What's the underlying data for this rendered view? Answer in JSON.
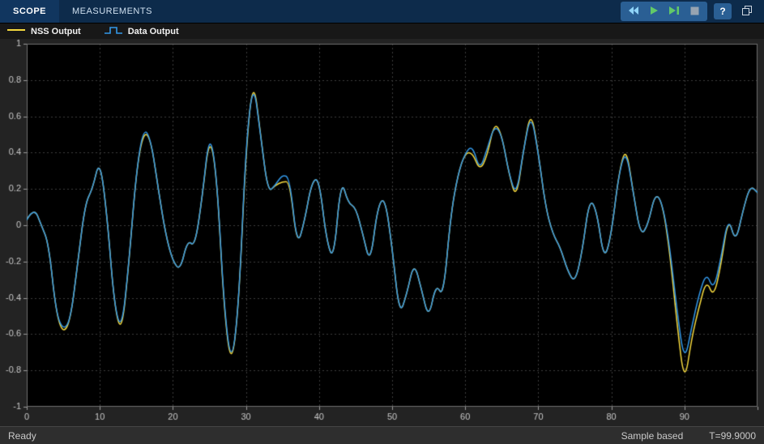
{
  "toolbar": {
    "tabs": [
      {
        "label": "SCOPE"
      },
      {
        "label": "MEASUREMENTS"
      }
    ],
    "buttons": [
      {
        "icon": "rewind-icon"
      },
      {
        "icon": "run-icon"
      },
      {
        "icon": "step-forward-icon"
      },
      {
        "icon": "stop-icon"
      }
    ],
    "help_label": "?"
  },
  "legend": {
    "items": [
      {
        "label": "NSS Output",
        "glyph": "line"
      },
      {
        "label": "Data Output",
        "glyph": "step"
      }
    ]
  },
  "chart_data": {
    "type": "line",
    "title": "",
    "xlabel": "",
    "ylabel": "",
    "xlim": [
      0,
      100
    ],
    "ylim": [
      -1,
      1
    ],
    "grid": true,
    "legend_position": "top-left",
    "xticks": [
      0,
      10,
      20,
      30,
      40,
      50,
      60,
      70,
      80,
      90,
      100
    ],
    "xtick_labels": [
      "0",
      "10",
      "20",
      "30",
      "40",
      "50",
      "60",
      "70",
      "80",
      "90",
      ""
    ],
    "yticks": [
      1,
      0.8,
      0.6,
      0.4,
      0.2,
      0,
      -0.2,
      -0.4,
      -0.6,
      -0.8,
      -1
    ],
    "ytick_labels": [
      "1",
      "0.8",
      "0.6",
      "0.4",
      "0.2",
      "0",
      "-0.2",
      "-0.4",
      "-0.6",
      "-0.8",
      "-1"
    ],
    "x_step": 1,
    "colors": {
      "figure_bg": "#232323",
      "axes_bg": "#000000",
      "grid": "#3d3d3d",
      "frame": "#6f6f6f",
      "tick_label": "#c8c8c8",
      "tick_mark": "#9a9a9a"
    },
    "series": [
      {
        "name": "NSS Output",
        "color": "#f5d93f",
        "values": [
          0.03,
          0.1,
          0.0,
          -0.1,
          -0.48,
          -0.6,
          -0.52,
          -0.2,
          0.12,
          0.2,
          0.37,
          0.05,
          -0.45,
          -0.6,
          -0.2,
          0.3,
          0.52,
          0.47,
          0.2,
          -0.05,
          -0.2,
          -0.25,
          -0.08,
          -0.12,
          0.15,
          0.5,
          0.28,
          -0.47,
          -0.79,
          -0.45,
          0.42,
          0.82,
          0.5,
          0.18,
          0.22,
          0.24,
          0.24,
          -0.12,
          0.02,
          0.24,
          0.26,
          -0.08,
          -0.2,
          0.26,
          0.12,
          0.1,
          -0.05,
          -0.22,
          0.1,
          0.16,
          -0.12,
          -0.5,
          -0.38,
          -0.2,
          -0.35,
          -0.52,
          -0.32,
          -0.4,
          0.05,
          0.28,
          0.4,
          0.4,
          0.3,
          0.38,
          0.57,
          0.5,
          0.28,
          0.14,
          0.42,
          0.64,
          0.4,
          0.1,
          -0.05,
          -0.12,
          -0.25,
          -0.32,
          -0.15,
          0.15,
          0.08,
          -0.2,
          -0.05,
          0.28,
          0.44,
          0.18,
          -0.06,
          0.0,
          0.18,
          0.12,
          -0.15,
          -0.55,
          -0.88,
          -0.62,
          -0.45,
          -0.3,
          -0.4,
          -0.22,
          0.05,
          -0.1,
          0.08,
          0.22,
          0.18
        ]
      },
      {
        "name": "Data Output",
        "color": "#3398e8",
        "values": [
          0.03,
          0.1,
          0.0,
          -0.1,
          -0.48,
          -0.58,
          -0.52,
          -0.2,
          0.12,
          0.2,
          0.37,
          0.05,
          -0.45,
          -0.58,
          -0.2,
          0.3,
          0.54,
          0.47,
          0.2,
          -0.05,
          -0.2,
          -0.25,
          -0.08,
          -0.12,
          0.15,
          0.52,
          0.28,
          -0.45,
          -0.78,
          -0.45,
          0.45,
          0.8,
          0.5,
          0.18,
          0.22,
          0.28,
          0.26,
          -0.12,
          0.02,
          0.24,
          0.26,
          -0.08,
          -0.2,
          0.26,
          0.12,
          0.1,
          -0.05,
          -0.22,
          0.1,
          0.16,
          -0.12,
          -0.5,
          -0.38,
          -0.2,
          -0.35,
          -0.52,
          -0.32,
          -0.4,
          0.05,
          0.28,
          0.4,
          0.44,
          0.3,
          0.42,
          0.55,
          0.5,
          0.28,
          0.16,
          0.42,
          0.62,
          0.4,
          0.1,
          -0.05,
          -0.12,
          -0.25,
          -0.32,
          -0.15,
          0.15,
          0.08,
          -0.2,
          -0.05,
          0.28,
          0.42,
          0.18,
          -0.06,
          0.0,
          0.18,
          0.12,
          -0.12,
          -0.48,
          -0.76,
          -0.56,
          -0.38,
          -0.26,
          -0.36,
          -0.18,
          0.05,
          -0.1,
          0.08,
          0.22,
          0.18
        ]
      }
    ]
  },
  "statusbar": {
    "ready": "Ready",
    "mode": "Sample based",
    "time": "T=99.9000"
  }
}
